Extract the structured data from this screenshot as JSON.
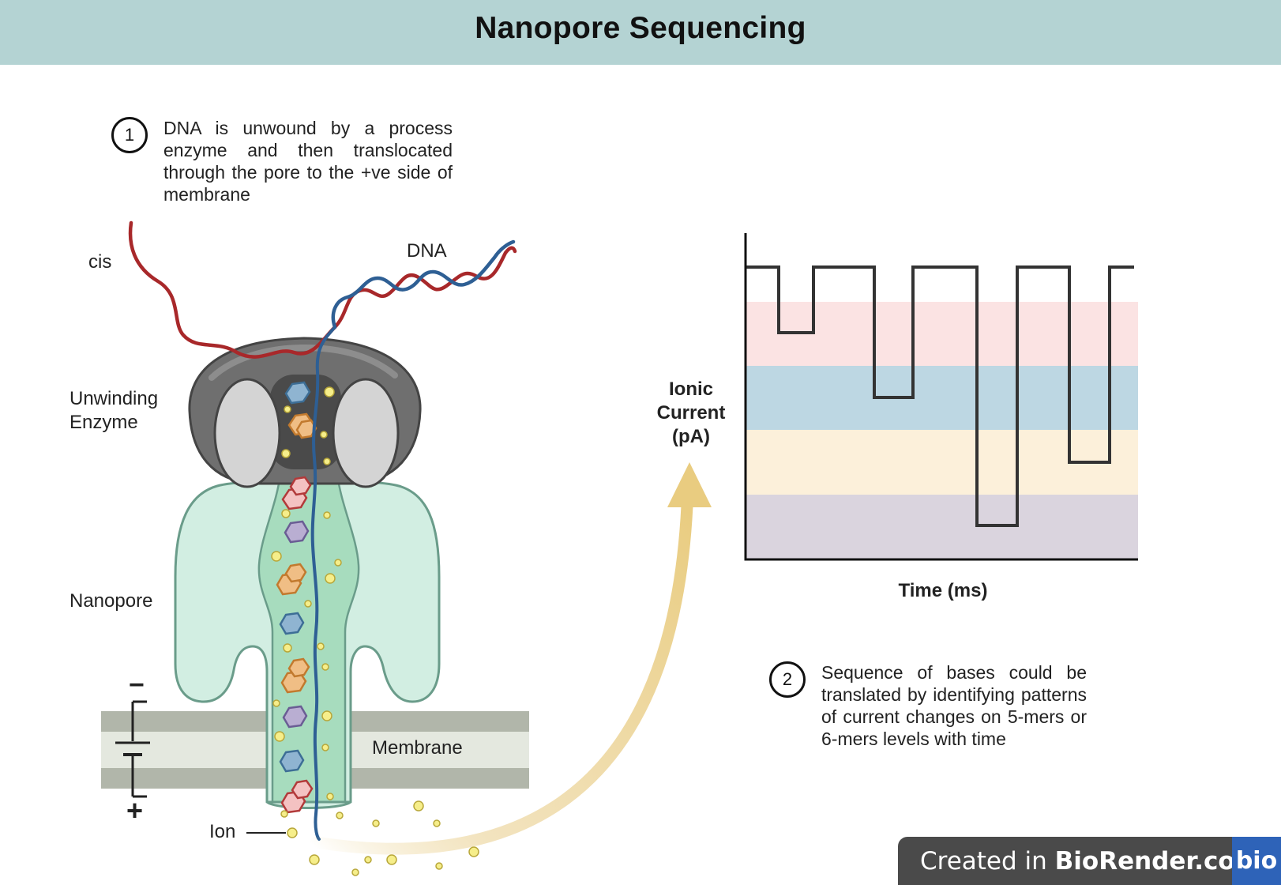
{
  "title": "Nanopore Sequencing",
  "step1": {
    "number": "1",
    "text": "DNA is unwound by a process enzyme and then translocated through the pore to the +ve side of membrane"
  },
  "step2": {
    "number": "2",
    "text": "Sequence of bases could be translated by identifying patterns of current changes on 5-mers or 6-mers levels with time"
  },
  "labels": {
    "cis": "cis",
    "dna": "DNA",
    "enzyme_line1": "Unwinding",
    "enzyme_line2": "Enzyme",
    "nanopore": "Nanopore",
    "membrane": "Membrane",
    "ion": "Ion",
    "minus": "−",
    "plus": "+"
  },
  "chart": {
    "ylabel_line1": "Ionic",
    "ylabel_line2": "Current",
    "ylabel_line3": "(pA)",
    "xlabel": "Time (ms)",
    "band_colors": [
      "#fbe3e3",
      "#bdd7e3",
      "#fcf0da",
      "#dad4de"
    ]
  },
  "branding": {
    "prefix": "Created in ",
    "brand": "BioRender.com",
    "logo": "bio"
  },
  "colors": {
    "header_bg": "#b4d3d3",
    "strand_red": "#a8282a",
    "strand_blue": "#2e5f94",
    "pore_fill": "#d2eee2",
    "pore_stroke": "#6a9c8a",
    "enzyme_dark": "#6f6f6f",
    "enzyme_light": "#d4d4d4",
    "membrane_dark": "#b1b6aa",
    "membrane_light": "#e4e8df",
    "arrow": "#e9cc80",
    "ion": "#f6ee8a"
  }
}
